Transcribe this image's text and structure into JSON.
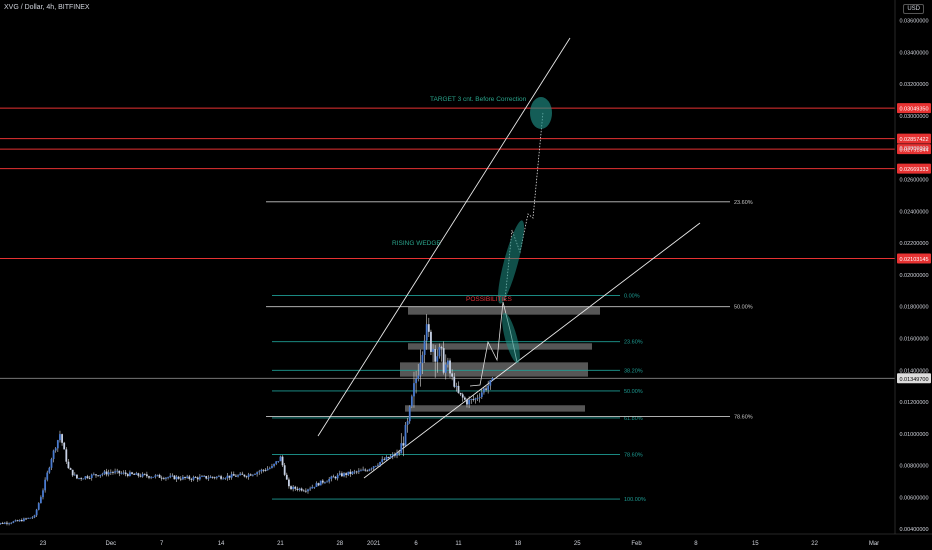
{
  "header": {
    "symbol_label": "XVG / Dollar, 4h, BITFINEX",
    "currency_button": "USD"
  },
  "chart_data": {
    "type": "candlestick",
    "title": "XVG / Dollar, 4h, BITFINEX",
    "ylim": [
      0.0037,
      0.0373
    ],
    "grid": false,
    "y_ticks": [
      "0.03600000",
      "0.03400000",
      "0.03200000",
      "0.03000000",
      "0.02800000",
      "0.02600000",
      "0.02400000",
      "0.02200000",
      "0.02000000",
      "0.01800000",
      "0.01600000",
      "0.01400000",
      "0.01200000",
      "0.01000000",
      "0.00800000",
      "0.00600000",
      "0.00400000"
    ],
    "y_tick_values": [
      0.036,
      0.034,
      0.032,
      0.03,
      0.028,
      0.026,
      0.024,
      0.022,
      0.02,
      0.018,
      0.016,
      0.014,
      0.012,
      0.01,
      0.008,
      0.006,
      0.004
    ],
    "x_ticks": [
      "23",
      "Dec",
      "7",
      "14",
      "21",
      "28",
      "2021",
      "6",
      "11",
      "18",
      "25",
      "Feb",
      "8",
      "15",
      "22",
      "Mar"
    ],
    "x_tick_dates": [
      "2020-11-23",
      "2020-12-01",
      "2020-12-07",
      "2020-12-14",
      "2020-12-21",
      "2020-12-28",
      "2021-01-01",
      "2021-01-06",
      "2021-01-11",
      "2021-01-18",
      "2021-01-25",
      "2021-02-01",
      "2021-02-08",
      "2021-02-15",
      "2021-02-22",
      "2021-03-01"
    ],
    "series_price": [
      [
        "2020-11-17",
        0.0043
      ],
      [
        "2020-11-20",
        0.0045
      ],
      [
        "2020-11-22",
        0.0048
      ],
      [
        "2020-11-23",
        0.0065
      ],
      [
        "2020-11-24",
        0.0085
      ],
      [
        "2020-11-25",
        0.01
      ],
      [
        "2020-11-26",
        0.0078
      ],
      [
        "2020-11-27",
        0.0072
      ],
      [
        "2020-11-29",
        0.0074
      ],
      [
        "2020-12-01",
        0.0076
      ],
      [
        "2020-12-04",
        0.0074
      ],
      [
        "2020-12-07",
        0.0073
      ],
      [
        "2020-12-10",
        0.0072
      ],
      [
        "2020-12-14",
        0.0073
      ],
      [
        "2020-12-17",
        0.0074
      ],
      [
        "2020-12-20",
        0.0079
      ],
      [
        "2020-12-21",
        0.0085
      ],
      [
        "2020-12-22",
        0.0066
      ],
      [
        "2020-12-24",
        0.0065
      ],
      [
        "2020-12-26",
        0.007
      ],
      [
        "2020-12-28",
        0.0074
      ],
      [
        "2020-12-31",
        0.0077
      ],
      [
        "2021-01-02",
        0.0083
      ],
      [
        "2021-01-04",
        0.0088
      ],
      [
        "2021-01-05",
        0.0105
      ],
      [
        "2021-01-06",
        0.0135
      ],
      [
        "2021-01-07",
        0.0165
      ],
      [
        "2021-01-08",
        0.0155
      ],
      [
        "2021-01-09",
        0.0147
      ],
      [
        "2021-01-10",
        0.0138
      ],
      [
        "2021-01-11",
        0.0125
      ],
      [
        "2021-01-12",
        0.012
      ],
      [
        "2021-01-13",
        0.0122
      ],
      [
        "2021-01-14",
        0.0128
      ],
      [
        "2021-01-15",
        0.0133
      ]
    ],
    "current_price": "0.01349700",
    "price_level_tags": [
      "0.03049350",
      "0.02857422",
      "0.02791844",
      "0.02669333",
      "0.02103145"
    ],
    "price_levels": [
      0.0304935,
      0.02857422,
      0.02791844,
      0.02669333,
      0.02103145
    ],
    "fib_inner": [
      {
        "label": "0.00%",
        "price": 0.0187
      },
      {
        "label": "23.60%",
        "price": 0.0158
      },
      {
        "label": "38.20%",
        "price": 0.014
      },
      {
        "label": "50.00%",
        "price": 0.0127
      },
      {
        "label": "61.80%",
        "price": 0.011
      },
      {
        "label": "78.60%",
        "price": 0.0087
      },
      {
        "label": "100.00%",
        "price": 0.0059
      }
    ],
    "fib_outer": [
      {
        "label": "23.60%",
        "price": 0.0246
      },
      {
        "label": "50.00%",
        "price": 0.018
      },
      {
        "label": "78.60%",
        "price": 0.0111
      }
    ],
    "zones": [
      {
        "price_top": 0.018,
        "price_bottom": 0.0175
      },
      {
        "price_top": 0.0157,
        "price_bottom": 0.0153
      },
      {
        "price_top": 0.0145,
        "price_bottom": 0.0136
      },
      {
        "price_top": 0.0118,
        "price_bottom": 0.0114
      }
    ],
    "annotations": {
      "target": "TARGET 3 cnt. Before Correction",
      "pattern": "RISING WEDGE",
      "possibility": "POSSIBILITIES"
    },
    "colors": {
      "background": "#000000",
      "candle": "#4a7bd0",
      "candle_wick": "#d8d8d8",
      "level_red": "#e63232",
      "fib_teal": "#1e9d94",
      "fib_white": "#c7c7c7",
      "zone_gray": "#7a7a7a",
      "annotation_green": "#2aa58c",
      "annotation_red": "#e0323a",
      "ellipse_teal": "#1e8f85",
      "wedge_line": "#e9e9e9"
    }
  }
}
